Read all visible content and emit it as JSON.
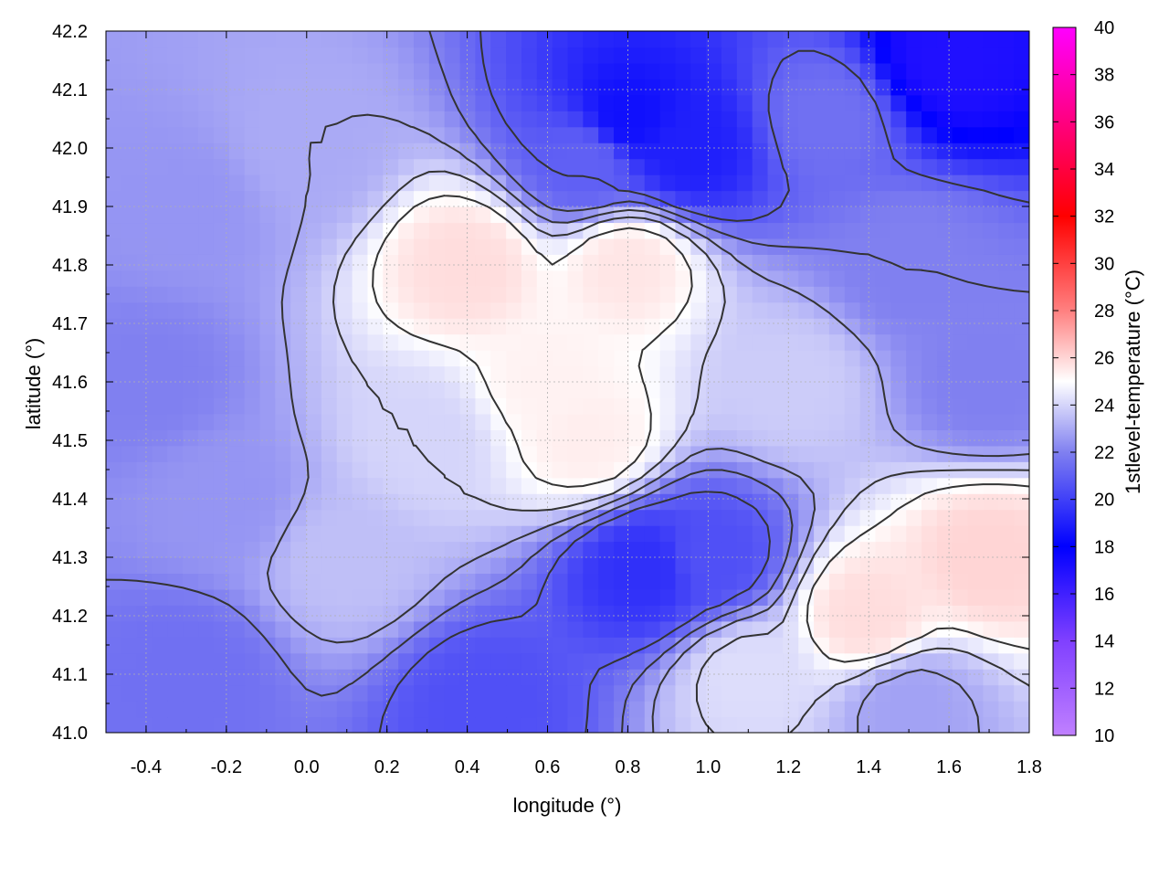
{
  "chart_data": {
    "type": "heatmap",
    "title": "",
    "xlabel": "longitude (°)",
    "ylabel": "latitude (°)",
    "colorbar_label": "1stlevel-temperature (°C)",
    "xlim": [
      -0.5,
      1.8
    ],
    "ylim": [
      41.0,
      42.2
    ],
    "x_ticks": [
      -0.4,
      -0.2,
      0.0,
      0.2,
      0.4,
      0.6,
      0.8,
      1.0,
      1.2,
      1.4,
      1.6,
      1.8
    ],
    "x_tick_labels": [
      "-0.4",
      "-0.2",
      "0.0",
      "0.2",
      "0.4",
      "0.6",
      "0.8",
      "1.0",
      "1.2",
      "1.4",
      "1.6",
      "1.8"
    ],
    "y_ticks": [
      41.0,
      41.1,
      41.2,
      41.3,
      41.4,
      41.5,
      41.6,
      41.7,
      41.8,
      41.9,
      42.0,
      42.1,
      42.2
    ],
    "y_tick_labels": [
      "41.0",
      "41.1",
      "41.2",
      "41.3",
      "41.4",
      "41.5",
      "41.6",
      "41.7",
      "41.8",
      "41.9",
      "42.0",
      "42.1",
      "42.2"
    ],
    "colorbar_range": [
      10,
      40
    ],
    "colorbar_ticks": [
      10,
      12,
      14,
      16,
      18,
      20,
      22,
      24,
      26,
      28,
      30,
      32,
      34,
      36,
      38,
      40
    ],
    "colorbar_tick_labels": [
      "10",
      "12",
      "14",
      "16",
      "18",
      "20",
      "22",
      "24",
      "26",
      "28",
      "30",
      "32",
      "34",
      "36",
      "38",
      "40"
    ],
    "colormap": [
      {
        "value": 10,
        "color": "#c080ff"
      },
      {
        "value": 14,
        "color": "#8040ff"
      },
      {
        "value": 18,
        "color": "#0000ff"
      },
      {
        "value": 22,
        "color": "#8080f0"
      },
      {
        "value": 25,
        "color": "#ffffff"
      },
      {
        "value": 28,
        "color": "#ff8080"
      },
      {
        "value": 32,
        "color": "#ff0000"
      },
      {
        "value": 36,
        "color": "#ff0080"
      },
      {
        "value": 40,
        "color": "#ff00ff"
      }
    ],
    "grid": true,
    "contours": true,
    "field_samples": [
      {
        "lon": -0.4,
        "lat": 41.6,
        "temp": 22.0
      },
      {
        "lon": -0.2,
        "lat": 41.4,
        "temp": 22.5
      },
      {
        "lon": -0.3,
        "lat": 41.9,
        "temp": 22.5
      },
      {
        "lon": 0.1,
        "lat": 41.3,
        "temp": 23.5
      },
      {
        "lon": 0.0,
        "lat": 42.0,
        "temp": 23.0
      },
      {
        "lon": 0.4,
        "lat": 41.8,
        "temp": 25.8
      },
      {
        "lon": 0.8,
        "lat": 41.8,
        "temp": 25.6
      },
      {
        "lon": 0.6,
        "lat": 41.6,
        "temp": 25.3
      },
      {
        "lon": 0.7,
        "lat": 41.5,
        "temp": 25.4
      },
      {
        "lon": 0.8,
        "lat": 42.05,
        "temp": 18.5
      },
      {
        "lon": 0.95,
        "lat": 42.0,
        "temp": 19.0
      },
      {
        "lon": 0.7,
        "lat": 41.98,
        "temp": 21.0
      },
      {
        "lon": 1.6,
        "lat": 42.15,
        "temp": 17.0
      },
      {
        "lon": 1.3,
        "lat": 42.05,
        "temp": 21.5
      },
      {
        "lon": 1.5,
        "lat": 41.8,
        "temp": 22.0
      },
      {
        "lon": 1.7,
        "lat": 41.6,
        "temp": 22.0
      },
      {
        "lon": 1.0,
        "lat": 41.3,
        "temp": 20.5
      },
      {
        "lon": 0.85,
        "lat": 41.28,
        "temp": 19.5
      },
      {
        "lon": 0.45,
        "lat": 41.05,
        "temp": 20.5
      },
      {
        "lon": -0.3,
        "lat": 41.1,
        "temp": 21.5
      },
      {
        "lon": 1.4,
        "lat": 41.2,
        "temp": 25.8
      },
      {
        "lon": 1.7,
        "lat": 41.3,
        "temp": 26.0
      },
      {
        "lon": 1.5,
        "lat": 41.05,
        "temp": 22.8
      },
      {
        "lon": 1.1,
        "lat": 41.1,
        "temp": 24.2
      },
      {
        "lon": 0.3,
        "lat": 41.5,
        "temp": 24.0
      },
      {
        "lon": 1.2,
        "lat": 41.6,
        "temp": 23.8
      }
    ]
  }
}
